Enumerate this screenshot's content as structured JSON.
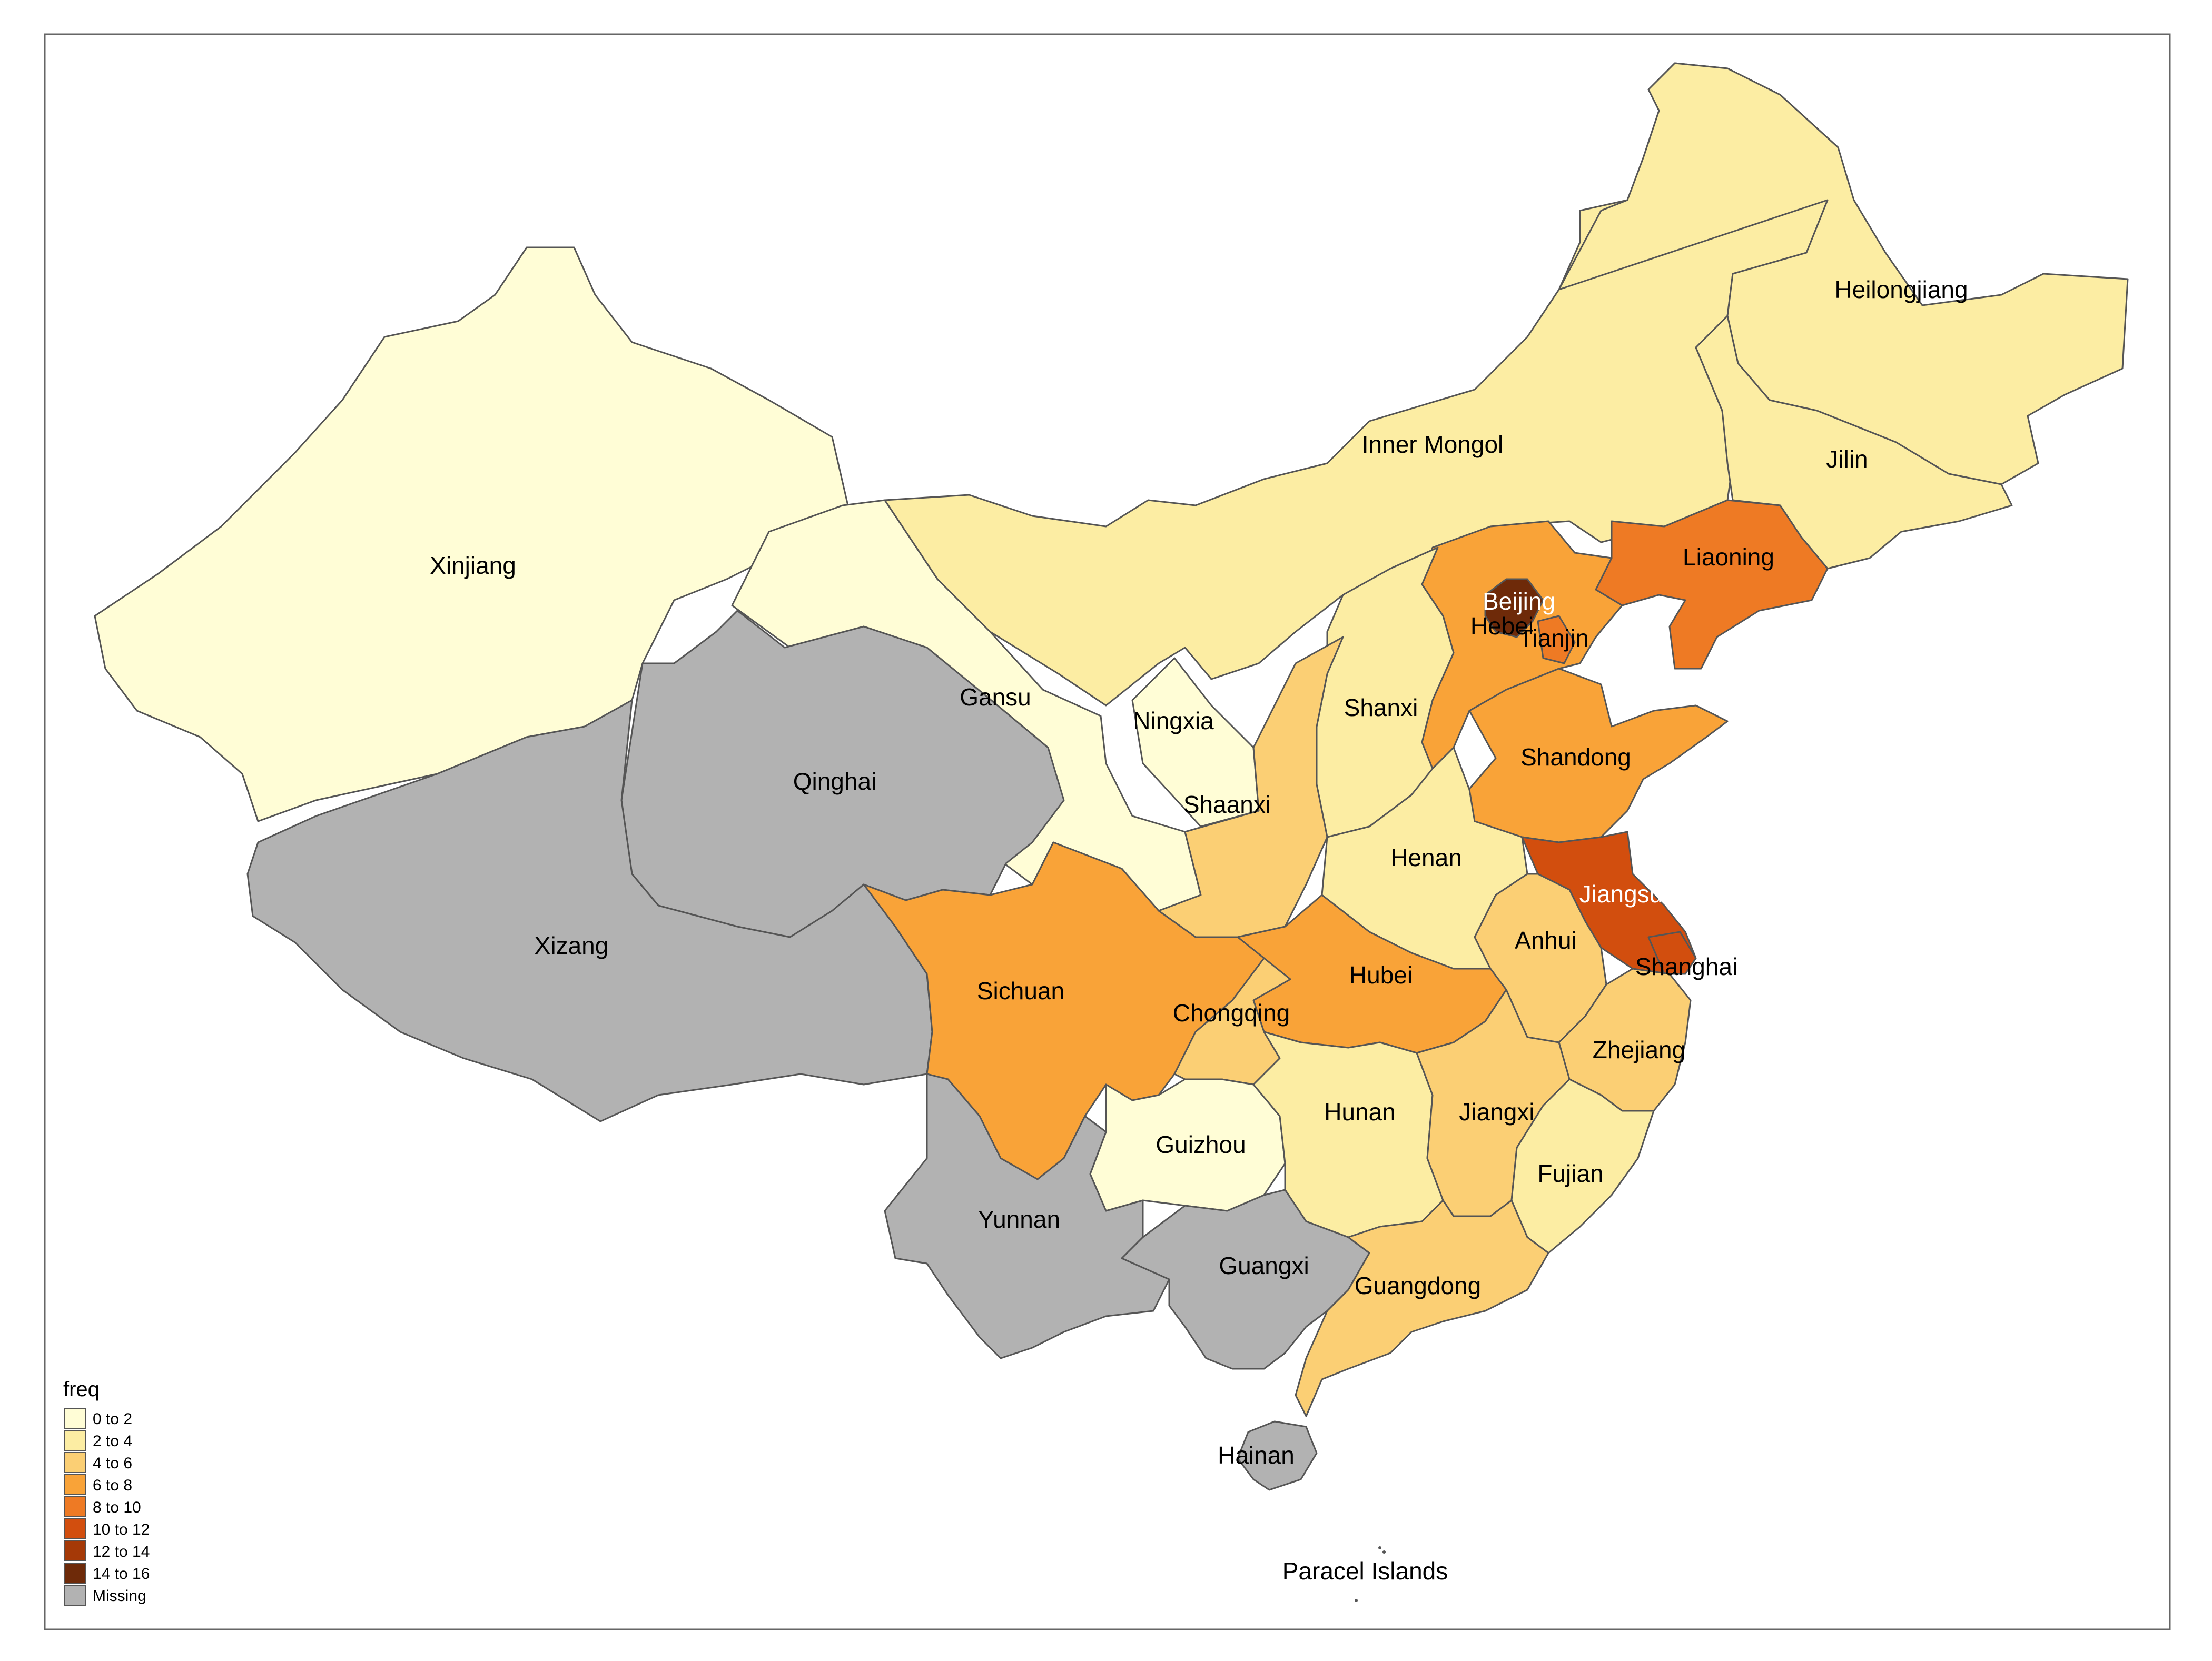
{
  "map": {
    "island_label": "Paracel Islands",
    "legend": {
      "title": "freq",
      "items": [
        {
          "label": "0 to 2",
          "color": "#FFFDD6"
        },
        {
          "label": "2 to 4",
          "color": "#FCEDA3"
        },
        {
          "label": "4 to 6",
          "color": "#FBCF74"
        },
        {
          "label": "6 to 8",
          "color": "#F9A338"
        },
        {
          "label": "8 to 10",
          "color": "#EE7A24"
        },
        {
          "label": "10 to 12",
          "color": "#D24E0E"
        },
        {
          "label": "12 to 14",
          "color": "#A53907"
        },
        {
          "label": "14 to 16",
          "color": "#6E2A09"
        },
        {
          "label": "Missing",
          "color": "#B2B2B2"
        }
      ]
    },
    "provinces": [
      {
        "name": "Xinjiang",
        "class": "0 to 2"
      },
      {
        "name": "Gansu",
        "class": "0 to 2"
      },
      {
        "name": "Ningxia",
        "class": "0 to 2"
      },
      {
        "name": "Guizhou",
        "class": "0 to 2"
      },
      {
        "name": "Qinghai",
        "class": "Missing"
      },
      {
        "name": "Xizang",
        "class": "Missing"
      },
      {
        "name": "Yunnan",
        "class": "Missing"
      },
      {
        "name": "Guangxi",
        "class": "Missing"
      },
      {
        "name": "Hainan",
        "class": "Missing"
      },
      {
        "name": "Heilongjiang",
        "class": "2 to 4"
      },
      {
        "name": "Jilin",
        "class": "2 to 4"
      },
      {
        "name": "Inner Mongol",
        "class": "2 to 4"
      },
      {
        "name": "Shanxi",
        "class": "2 to 4"
      },
      {
        "name": "Henan",
        "class": "2 to 4"
      },
      {
        "name": "Hunan",
        "class": "2 to 4"
      },
      {
        "name": "Fujian",
        "class": "2 to 4"
      },
      {
        "name": "Shaanxi",
        "class": "4 to 6"
      },
      {
        "name": "Chongqing",
        "class": "4 to 6"
      },
      {
        "name": "Anhui",
        "class": "4 to 6"
      },
      {
        "name": "Jiangxi",
        "class": "4 to 6"
      },
      {
        "name": "Zhejiang",
        "class": "4 to 6"
      },
      {
        "name": "Guangdong",
        "class": "4 to 6"
      },
      {
        "name": "Sichuan",
        "class": "6 to 8"
      },
      {
        "name": "Hubei",
        "class": "6 to 8"
      },
      {
        "name": "Hebei",
        "class": "6 to 8"
      },
      {
        "name": "Shandong",
        "class": "6 to 8"
      },
      {
        "name": "Liaoning",
        "class": "8 to 10"
      },
      {
        "name": "Tianjin",
        "class": "8 to 10"
      },
      {
        "name": "Jiangsu",
        "class": "10 to 12"
      },
      {
        "name": "Shanghai",
        "class": "10 to 12"
      },
      {
        "name": "Beijing",
        "class": "14 to 16"
      }
    ]
  }
}
